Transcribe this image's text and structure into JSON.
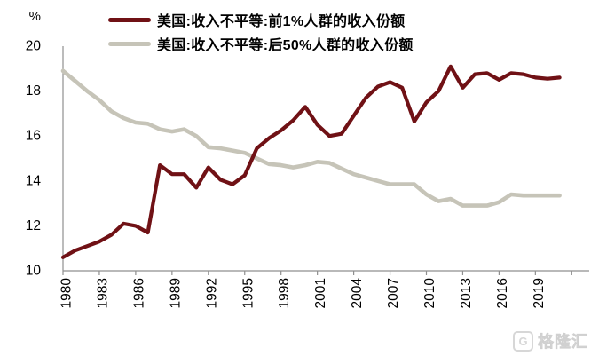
{
  "chart_data": {
    "type": "line",
    "title": "",
    "ylabel": "%",
    "ylim": [
      10,
      20
    ],
    "yticks": [
      10,
      12,
      14,
      16,
      18,
      20
    ],
    "grid": false,
    "legend_position": "top-left",
    "axis_color": "#8f8f8f",
    "text_color": "#000000",
    "x": [
      1980,
      1981,
      1982,
      1983,
      1984,
      1985,
      1986,
      1987,
      1988,
      1989,
      1990,
      1991,
      1992,
      1993,
      1994,
      1995,
      1996,
      1997,
      1998,
      1999,
      2000,
      2001,
      2002,
      2003,
      2004,
      2005,
      2006,
      2007,
      2008,
      2009,
      2010,
      2011,
      2012,
      2013,
      2014,
      2015,
      2016,
      2017,
      2018,
      2019,
      2020,
      2021
    ],
    "x_ticks": [
      1980,
      1983,
      1986,
      1989,
      1992,
      1995,
      1998,
      2001,
      2004,
      2007,
      2010,
      2013,
      2016,
      2019,
      2022
    ],
    "x_tick_labels": [
      "1980",
      "1983",
      "1986",
      "1989",
      "1992",
      "1995",
      "1998",
      "2001",
      "2004",
      "2007",
      "2010",
      "2013",
      "2016",
      "2019",
      ""
    ],
    "series": [
      {
        "name": "美国:收入不平等:前1%人群的收入份额",
        "color": "#701115",
        "values": [
          10.6,
          10.9,
          11.1,
          11.3,
          11.6,
          12.1,
          12.0,
          11.7,
          14.7,
          14.3,
          14.3,
          13.7,
          14.6,
          14.05,
          13.85,
          14.25,
          15.45,
          15.9,
          16.25,
          16.7,
          17.3,
          16.5,
          16.0,
          16.1,
          16.9,
          17.7,
          18.2,
          18.4,
          18.15,
          16.65,
          17.5,
          18.0,
          19.1,
          18.15,
          18.75,
          18.8,
          18.5,
          18.8,
          18.75,
          18.6,
          18.55,
          18.6
        ]
      },
      {
        "name": "美国:收入不平等:后50%人群的收入份额",
        "color": "#c6c4b8",
        "values": [
          18.9,
          18.45,
          18.0,
          17.6,
          17.1,
          16.8,
          16.6,
          16.55,
          16.3,
          16.2,
          16.3,
          16.0,
          15.5,
          15.45,
          15.35,
          15.25,
          15.0,
          14.75,
          14.7,
          14.6,
          14.7,
          14.85,
          14.8,
          14.55,
          14.3,
          14.15,
          14.0,
          13.85,
          13.85,
          13.85,
          13.4,
          13.1,
          13.2,
          12.9,
          12.9,
          12.9,
          13.05,
          13.4,
          13.35,
          13.35,
          13.35,
          13.35
        ]
      }
    ]
  },
  "watermark": {
    "logo_letter": "G",
    "text": "格隆汇"
  }
}
